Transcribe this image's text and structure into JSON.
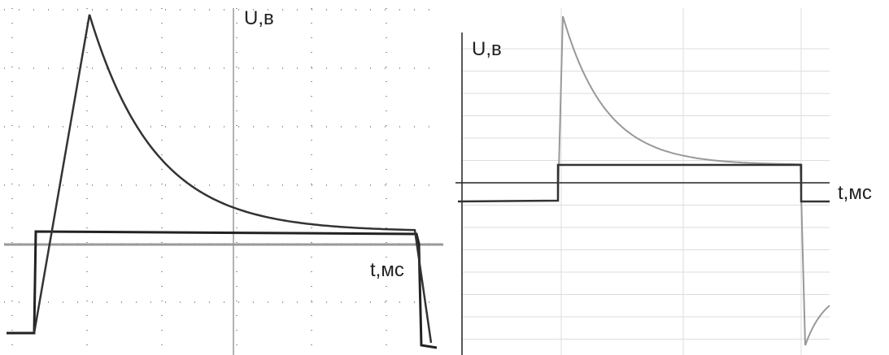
{
  "panels": [
    {
      "y_label": "U,в",
      "x_label": "t,мс"
    },
    {
      "y_label": "U,в",
      "x_label": "t,мс"
    }
  ]
}
